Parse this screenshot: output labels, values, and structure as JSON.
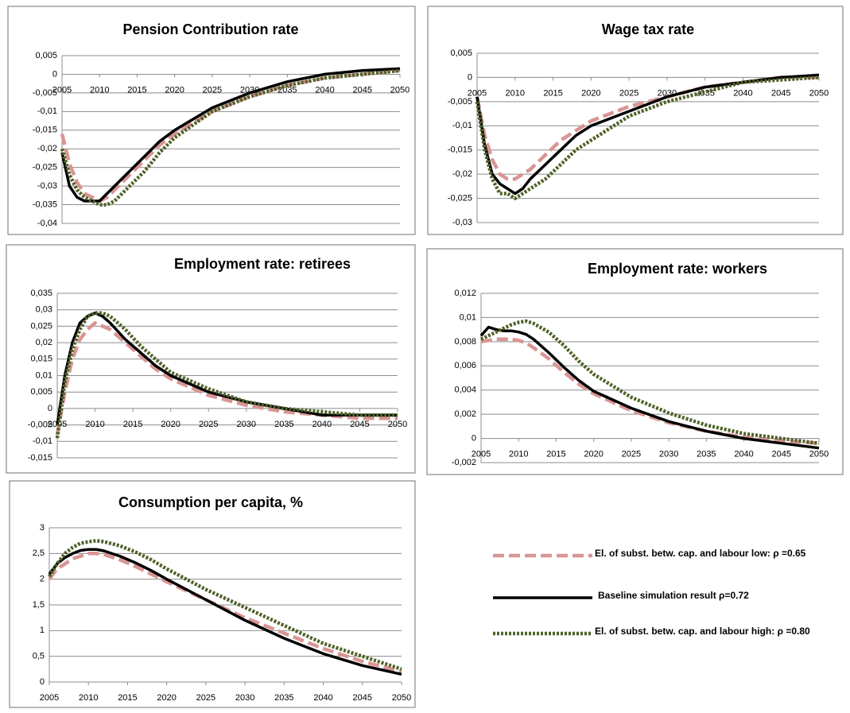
{
  "chart_data": [
    {
      "type": "line",
      "title": "Pension Contribution rate",
      "x": [
        2005,
        2006,
        2007,
        2008,
        2009,
        2010,
        2011,
        2012,
        2014,
        2016,
        2018,
        2020,
        2025,
        2030,
        2035,
        2040,
        2045,
        2050
      ],
      "xlim": [
        2005,
        2050
      ],
      "xticks": [
        2005,
        2010,
        2015,
        2020,
        2025,
        2030,
        2035,
        2040,
        2045,
        2050
      ],
      "ylim": [
        -0.04,
        0.005
      ],
      "yticks": [
        {
          "value": 0.005,
          "label": "0,005"
        },
        0,
        {
          "value": -0.005,
          "label": "-0,005"
        },
        {
          "value": -0.01,
          "label": "-0,01"
        },
        {
          "value": -0.015,
          "label": "-0,015"
        },
        {
          "value": -0.02,
          "label": "-0,02"
        },
        {
          "value": -0.025,
          "label": "-0,025"
        },
        {
          "value": -0.03,
          "label": "-0,03"
        },
        {
          "value": -0.035,
          "label": "-0,035"
        },
        {
          "value": -0.04,
          "label": "-0,04"
        }
      ],
      "grid": true,
      "series": [
        {
          "values": [
            -0.016,
            -0.024,
            -0.029,
            -0.032,
            -0.033,
            -0.034,
            -0.033,
            -0.031,
            -0.027,
            -0.023,
            -0.019,
            -0.016,
            -0.01,
            -0.006,
            -0.003,
            -0.001,
            0.0,
            0.001
          ]
        },
        {
          "values": [
            -0.021,
            -0.03,
            -0.033,
            -0.034,
            -0.034,
            -0.034,
            -0.032,
            -0.03,
            -0.026,
            -0.022,
            -0.018,
            -0.015,
            -0.009,
            -0.005,
            -0.002,
            0.0,
            0.001,
            0.0015
          ]
        },
        {
          "values": [
            -0.02,
            -0.027,
            -0.031,
            -0.033,
            -0.034,
            -0.035,
            -0.035,
            -0.034,
            -0.03,
            -0.026,
            -0.021,
            -0.017,
            -0.01,
            -0.006,
            -0.003,
            -0.001,
            0.0,
            0.001
          ]
        }
      ]
    },
    {
      "type": "line",
      "title": "Wage tax rate",
      "x": [
        2005,
        2006,
        2007,
        2008,
        2009,
        2010,
        2011,
        2012,
        2014,
        2016,
        2018,
        2020,
        2025,
        2030,
        2035,
        2040,
        2045,
        2050
      ],
      "xlim": [
        2005,
        2050
      ],
      "xticks": [
        2005,
        2010,
        2015,
        2020,
        2025,
        2030,
        2035,
        2040,
        2045,
        2050
      ],
      "ylim": [
        -0.03,
        0.005
      ],
      "yticks": [
        {
          "value": 0.005,
          "label": "0,005"
        },
        0,
        {
          "value": -0.005,
          "label": "-0,005"
        },
        {
          "value": -0.01,
          "label": "-0,01"
        },
        {
          "value": -0.015,
          "label": "-0,015"
        },
        {
          "value": -0.02,
          "label": "-0,02"
        },
        {
          "value": -0.025,
          "label": "-0,025"
        },
        {
          "value": -0.03,
          "label": "-0,03"
        }
      ],
      "grid": true,
      "series": [
        {
          "values": [
            -0.004,
            -0.012,
            -0.017,
            -0.02,
            -0.021,
            -0.021,
            -0.02,
            -0.019,
            -0.016,
            -0.013,
            -0.011,
            -0.009,
            -0.006,
            -0.004,
            -0.002,
            -0.001,
            0.0,
            0.0
          ]
        },
        {
          "values": [
            -0.004,
            -0.014,
            -0.02,
            -0.022,
            -0.023,
            -0.024,
            -0.023,
            -0.021,
            -0.018,
            -0.015,
            -0.012,
            -0.01,
            -0.007,
            -0.004,
            -0.002,
            -0.001,
            0.0,
            0.0005
          ]
        },
        {
          "values": [
            -0.005,
            -0.015,
            -0.021,
            -0.024,
            -0.024,
            -0.025,
            -0.024,
            -0.023,
            -0.021,
            -0.018,
            -0.015,
            -0.013,
            -0.008,
            -0.005,
            -0.003,
            -0.001,
            -0.0005,
            0.0
          ]
        }
      ]
    },
    {
      "type": "line",
      "title": "Employment rate: retirees",
      "x": [
        2005,
        2006,
        2007,
        2008,
        2009,
        2010,
        2011,
        2012,
        2014,
        2016,
        2018,
        2020,
        2025,
        2030,
        2035,
        2040,
        2045,
        2050
      ],
      "xlim": [
        2005,
        2050
      ],
      "xticks": [
        2005,
        2010,
        2015,
        2020,
        2025,
        2030,
        2035,
        2040,
        2045,
        2050
      ],
      "ylim": [
        -0.015,
        0.035
      ],
      "yticks": [
        {
          "value": 0.035,
          "label": "0,035"
        },
        {
          "value": 0.03,
          "label": "0,03"
        },
        {
          "value": 0.025,
          "label": "0,025"
        },
        {
          "value": 0.02,
          "label": "0,02"
        },
        {
          "value": 0.015,
          "label": "0,015"
        },
        {
          "value": 0.01,
          "label": "0,01"
        },
        {
          "value": 0.005,
          "label": "0,005"
        },
        0,
        {
          "value": -0.005,
          "label": "-0,005"
        },
        {
          "value": -0.01,
          "label": "-0,01"
        },
        {
          "value": -0.015,
          "label": "-0,015"
        }
      ],
      "grid": true,
      "series": [
        {
          "values": [
            -0.008,
            0.005,
            0.015,
            0.021,
            0.024,
            0.026,
            0.025,
            0.024,
            0.02,
            0.016,
            0.012,
            0.009,
            0.004,
            0.001,
            -0.001,
            -0.002,
            -0.003,
            -0.003
          ]
        },
        {
          "values": [
            -0.005,
            0.01,
            0.02,
            0.026,
            0.028,
            0.029,
            0.028,
            0.026,
            0.021,
            0.017,
            0.013,
            0.01,
            0.005,
            0.002,
            0.0,
            -0.002,
            -0.002,
            -0.002
          ]
        },
        {
          "values": [
            -0.009,
            0.008,
            0.018,
            0.024,
            0.028,
            0.029,
            0.029,
            0.028,
            0.024,
            0.019,
            0.015,
            0.011,
            0.006,
            0.002,
            0.0,
            -0.001,
            -0.002,
            -0.002
          ]
        }
      ]
    },
    {
      "type": "line",
      "title": "Employment rate: workers",
      "x": [
        2005,
        2006,
        2007,
        2008,
        2009,
        2010,
        2011,
        2012,
        2014,
        2016,
        2018,
        2020,
        2025,
        2030,
        2035,
        2040,
        2045,
        2050
      ],
      "xlim": [
        2005,
        2050
      ],
      "xticks": [
        2005,
        2010,
        2015,
        2020,
        2025,
        2030,
        2035,
        2040,
        2045,
        2050
      ],
      "ylim": [
        -0.002,
        0.012
      ],
      "yticks": [
        {
          "value": 0.012,
          "label": "0,012"
        },
        {
          "value": 0.01,
          "label": "0,01"
        },
        {
          "value": 0.008,
          "label": "0,008"
        },
        {
          "value": 0.006,
          "label": "0,006"
        },
        {
          "value": 0.004,
          "label": "0,004"
        },
        {
          "value": 0.002,
          "label": "0,002"
        },
        0,
        {
          "value": -0.002,
          "label": "-0,002"
        }
      ],
      "grid": true,
      "series": [
        {
          "values": [
            0.008,
            0.0081,
            0.0082,
            0.0082,
            0.0082,
            0.0081,
            0.0079,
            0.0075,
            0.0066,
            0.0055,
            0.0045,
            0.0037,
            0.0023,
            0.0013,
            0.0006,
            0.0001,
            -0.0002,
            -0.0004
          ]
        },
        {
          "values": [
            0.0085,
            0.0092,
            0.009,
            0.0089,
            0.0089,
            0.0088,
            0.0086,
            0.0082,
            0.0071,
            0.0059,
            0.0048,
            0.0039,
            0.0025,
            0.0014,
            0.0006,
            0.0,
            -0.0004,
            -0.0008
          ]
        },
        {
          "values": [
            0.0082,
            0.0085,
            0.0088,
            0.0091,
            0.0094,
            0.0096,
            0.0097,
            0.0095,
            0.0088,
            0.0077,
            0.0064,
            0.0053,
            0.0034,
            0.0021,
            0.0011,
            0.0004,
            0.0,
            -0.0004
          ]
        }
      ]
    },
    {
      "type": "line",
      "title": "Consumption per capita, %",
      "x": [
        2005,
        2006,
        2007,
        2008,
        2009,
        2010,
        2011,
        2012,
        2014,
        2016,
        2018,
        2020,
        2025,
        2030,
        2035,
        2040,
        2045,
        2050
      ],
      "xlim": [
        2005,
        2050
      ],
      "xticks": [
        2005,
        2010,
        2015,
        2020,
        2025,
        2030,
        2035,
        2040,
        2045,
        2050
      ],
      "ylim": [
        0,
        3
      ],
      "yticks": [
        3,
        {
          "value": 2.5,
          "label": "2,5"
        },
        2,
        {
          "value": 1.5,
          "label": "1,5"
        },
        1,
        {
          "value": 0.5,
          "label": "0,5"
        },
        0
      ],
      "grid": true,
      "series": [
        {
          "values": [
            2.0,
            2.2,
            2.3,
            2.4,
            2.45,
            2.5,
            2.5,
            2.48,
            2.38,
            2.25,
            2.1,
            1.95,
            1.6,
            1.25,
            0.95,
            0.65,
            0.4,
            0.2
          ]
        },
        {
          "values": [
            2.1,
            2.3,
            2.42,
            2.5,
            2.56,
            2.58,
            2.58,
            2.55,
            2.45,
            2.32,
            2.17,
            2.0,
            1.6,
            1.2,
            0.85,
            0.55,
            0.32,
            0.15
          ]
        },
        {
          "values": [
            2.05,
            2.3,
            2.5,
            2.62,
            2.7,
            2.73,
            2.75,
            2.73,
            2.65,
            2.53,
            2.38,
            2.2,
            1.8,
            1.45,
            1.1,
            0.75,
            0.5,
            0.25
          ]
        }
      ]
    }
  ],
  "legend": {
    "entries": [
      {
        "name": "El. of subst. betw. cap. and labour low: ρ =0.65",
        "color": "#d99594",
        "style": "dashed"
      },
      {
        "name": "Baseline simulation result ρ=0.72",
        "color": "#000000",
        "style": "solid"
      },
      {
        "name": "El. of subst. betw. cap. and labour high: ρ =0.80",
        "color": "#4f6228",
        "style": "dotted"
      }
    ]
  }
}
